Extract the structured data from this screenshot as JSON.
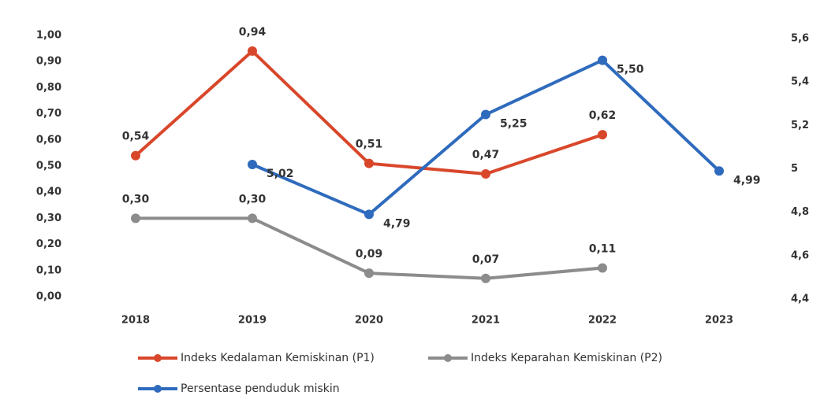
{
  "chart_data": {
    "type": "line",
    "categories": [
      "2018",
      "2019",
      "2020",
      "2021",
      "2022",
      "2023"
    ],
    "series": [
      {
        "name": "Indeks Kedalaman Kemiskinan (P1)",
        "color": "#d9472b",
        "values": [
          0.54,
          0.94,
          0.51,
          0.47,
          0.62,
          null
        ],
        "value_labels": [
          "0,54",
          "0,94",
          "0,51",
          "0,47",
          "0,62",
          null
        ]
      },
      {
        "name": "Indeks Keparahan Kemiskinan (P2)",
        "color": "#8c8c8c",
        "values": [
          0.3,
          0.3,
          0.09,
          0.07,
          0.11,
          null
        ],
        "value_labels": [
          "0,30",
          "0,30",
          "0,09",
          "0,07",
          "0,11",
          null
        ]
      },
      {
        "name": "Persentase penduduk miskin",
        "color": "#2f6bbd",
        "axis": "y2",
        "values": [
          null,
          5.02,
          4.79,
          5.25,
          5.5,
          4.99
        ],
        "value_labels": [
          null,
          "5,02",
          "4,79",
          "5,25",
          "5,50",
          "4,99"
        ]
      }
    ],
    "ylim": [
      0,
      1
    ],
    "yticks": [
      {
        "value": 0,
        "label": "0,00"
      },
      {
        "value": 0.1,
        "label": "0,10"
      },
      {
        "value": 0.2,
        "label": "0,20"
      },
      {
        "value": 0.3,
        "label": "0,30"
      },
      {
        "value": 0.4,
        "label": "0,40"
      },
      {
        "value": 0.5,
        "label": "0,50"
      },
      {
        "value": 0.6,
        "label": "0,60"
      },
      {
        "value": 0.7,
        "label": "0,70"
      },
      {
        "value": 0.8,
        "label": "0,80"
      },
      {
        "value": 0.9,
        "label": "0,90"
      },
      {
        "value": 1,
        "label": "1,00"
      }
    ],
    "y2lim": [
      4.4,
      5.6
    ],
    "y2ticks": [
      {
        "value": 4.4,
        "label": "4,4"
      },
      {
        "value": 4.6,
        "label": "4,6"
      },
      {
        "value": 4.8,
        "label": "4,8"
      },
      5,
      {
        "value": 5.2,
        "label": "5,2"
      },
      {
        "value": 5.4,
        "label": "5,4"
      },
      {
        "value": 5.6,
        "label": "5,6"
      }
    ],
    "grid": false
  }
}
